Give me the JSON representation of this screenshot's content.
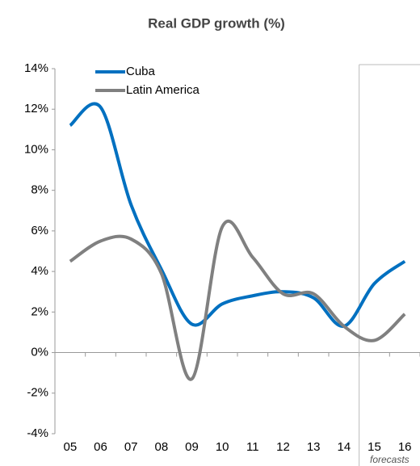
{
  "chart_data": {
    "type": "line",
    "title": "Real GDP growth (%)",
    "categories": [
      "05",
      "06",
      "07",
      "08",
      "09",
      "10",
      "11",
      "12",
      "13",
      "14",
      "15",
      "16"
    ],
    "series": [
      {
        "name": "Cuba",
        "color": "#0070c0",
        "values": [
          11.2,
          12.1,
          7.3,
          4.1,
          1.4,
          2.4,
          2.8,
          3.0,
          2.7,
          1.3,
          3.4,
          4.5
        ]
      },
      {
        "name": "Latin America",
        "color": "#808080",
        "values": [
          4.5,
          5.5,
          5.6,
          3.9,
          -1.3,
          6.2,
          4.7,
          2.9,
          2.9,
          1.3,
          0.6,
          1.9
        ]
      }
    ],
    "ylim": [
      -4,
      14
    ],
    "yticks": [
      {
        "value": -4,
        "label": "-4%"
      },
      {
        "value": -2,
        "label": "-2%"
      },
      {
        "value": 0,
        "label": "0%"
      },
      {
        "value": 2,
        "label": "2%"
      },
      {
        "value": 4,
        "label": "4%"
      },
      {
        "value": 6,
        "label": "6%"
      },
      {
        "value": 8,
        "label": "8%"
      },
      {
        "value": 10,
        "label": "10%"
      },
      {
        "value": 12,
        "label": "12%"
      },
      {
        "value": 14,
        "label": "14%"
      }
    ],
    "annotation": "forecasts",
    "legend": "upper left"
  }
}
